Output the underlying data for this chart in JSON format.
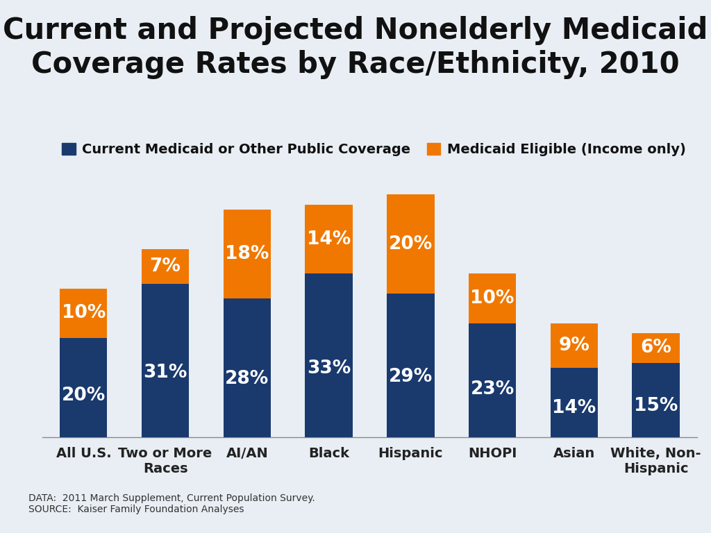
{
  "title": "Current and Projected Nonelderly Medicaid\nCoverage Rates by Race/Ethnicity, 2010",
  "background_color": "#e8eef4",
  "categories": [
    "All U.S.",
    "Two or More\nRaces",
    "AI/AN",
    "Black",
    "Hispanic",
    "NHOPI",
    "Asian",
    "White, Non-\nHispanic"
  ],
  "current_values": [
    20,
    31,
    28,
    33,
    29,
    23,
    14,
    15
  ],
  "eligible_values": [
    10,
    7,
    18,
    14,
    20,
    10,
    9,
    6
  ],
  "current_color": "#1a3a6e",
  "eligible_color": "#f07800",
  "legend_labels": [
    "Current Medicaid or Other Public Coverage",
    "Medicaid Eligible (Income only)"
  ],
  "title_fontsize": 30,
  "bar_width": 0.58,
  "label_fontsize": 19,
  "tick_fontsize": 14,
  "legend_fontsize": 14,
  "source_text": "DATA:  2011 March Supplement, Current Population Survey.\nSOURCE:  Kaiser Family Foundation Analyses",
  "source_fontsize": 10
}
